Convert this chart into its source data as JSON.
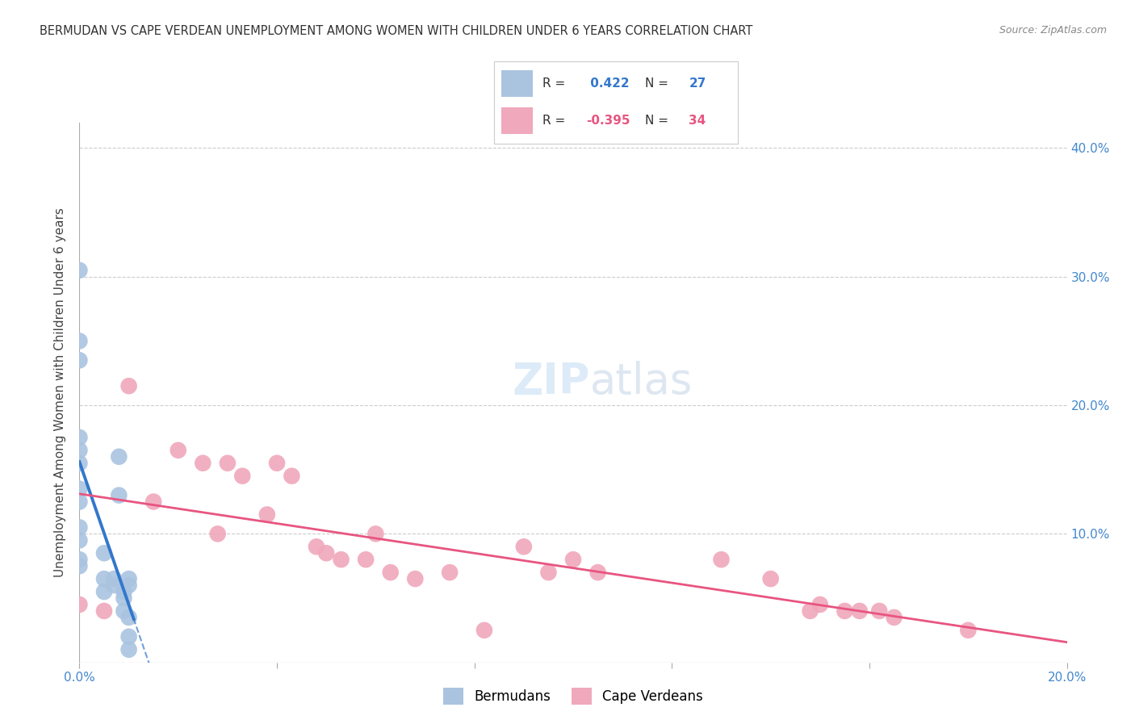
{
  "title": "BERMUDAN VS CAPE VERDEAN UNEMPLOYMENT AMONG WOMEN WITH CHILDREN UNDER 6 YEARS CORRELATION CHART",
  "source": "Source: ZipAtlas.com",
  "ylabel": "Unemployment Among Women with Children Under 6 years",
  "background_color": "#ffffff",
  "xlim": [
    0.0,
    0.2
  ],
  "ylim": [
    0.0,
    0.42
  ],
  "bermuda_R": 0.422,
  "bermuda_N": 27,
  "capeverde_R": -0.395,
  "capeverde_N": 34,
  "bermuda_color": "#aac4e0",
  "capeverde_color": "#f0a8bc",
  "trendline_bermuda_color": "#3377cc",
  "trendline_capeverde_color": "#e85580",
  "grid_color": "#cccccc",
  "legend_text_color": "#333333",
  "legend_blue_color": "#3377cc",
  "legend_pink_color": "#e85580",
  "bermuda_points_x": [
    0.0,
    0.0,
    0.0,
    0.0,
    0.0,
    0.0,
    0.0,
    0.0,
    0.0,
    0.0,
    0.0,
    0.0,
    0.005,
    0.005,
    0.005,
    0.007,
    0.007,
    0.008,
    0.008,
    0.009,
    0.009,
    0.009,
    0.01,
    0.01,
    0.01,
    0.01,
    0.01
  ],
  "bermuda_points_y": [
    0.305,
    0.25,
    0.235,
    0.175,
    0.165,
    0.155,
    0.135,
    0.125,
    0.105,
    0.095,
    0.08,
    0.075,
    0.085,
    0.065,
    0.055,
    0.065,
    0.06,
    0.13,
    0.16,
    0.055,
    0.05,
    0.04,
    0.065,
    0.06,
    0.035,
    0.02,
    0.01
  ],
  "capeverde_points_x": [
    0.0,
    0.005,
    0.01,
    0.015,
    0.02,
    0.025,
    0.028,
    0.03,
    0.033,
    0.038,
    0.04,
    0.043,
    0.048,
    0.05,
    0.053,
    0.058,
    0.06,
    0.063,
    0.068,
    0.075,
    0.082,
    0.09,
    0.095,
    0.1,
    0.105,
    0.13,
    0.14,
    0.148,
    0.15,
    0.155,
    0.158,
    0.162,
    0.165,
    0.18
  ],
  "capeverde_points_y": [
    0.045,
    0.04,
    0.215,
    0.125,
    0.165,
    0.155,
    0.1,
    0.155,
    0.145,
    0.115,
    0.155,
    0.145,
    0.09,
    0.085,
    0.08,
    0.08,
    0.1,
    0.07,
    0.065,
    0.07,
    0.025,
    0.09,
    0.07,
    0.08,
    0.07,
    0.08,
    0.065,
    0.04,
    0.045,
    0.04,
    0.04,
    0.04,
    0.035,
    0.025
  ]
}
